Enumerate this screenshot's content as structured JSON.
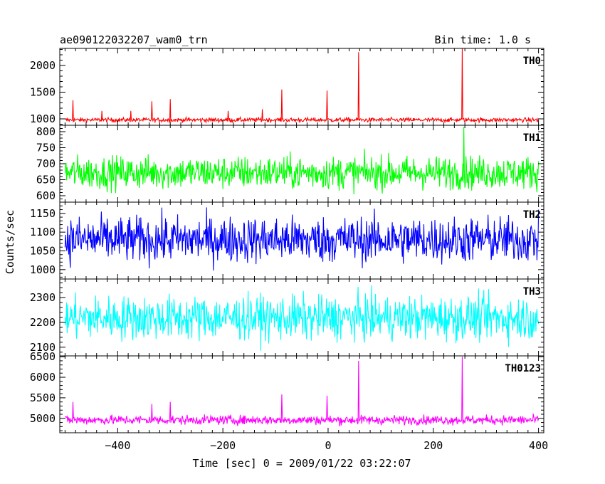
{
  "header": {
    "title": "ae090122032207_wam0_trn",
    "bin_time": "Bin time: 1.0 s"
  },
  "chart_data": {
    "type": "line",
    "xlabel": "Time [sec] 0 = 2009/01/22 03:22:07",
    "ylabel": "Counts/sec",
    "xlim": [
      -510,
      410
    ],
    "data_x_range": [
      -500,
      400
    ],
    "x_ticks": [
      -400,
      -200,
      0,
      200,
      400
    ],
    "x_tick_labels": [
      "−400",
      "−200",
      "0",
      "200",
      "400"
    ],
    "grid": false,
    "series": [
      {
        "name": "TH0",
        "color": "#ff0000",
        "ylim": [
          880,
          2320
        ],
        "y_ticks": [
          1000,
          1500,
          2000
        ],
        "y_tick_labels": [
          "1000",
          "1500",
          "2000"
        ],
        "baseline": 980,
        "noise_amplitude": 25,
        "spikes": [
          {
            "x": -485,
            "y": 1350
          },
          {
            "x": -430,
            "y": 1150
          },
          {
            "x": -375,
            "y": 1150
          },
          {
            "x": -335,
            "y": 1330
          },
          {
            "x": -300,
            "y": 1370
          },
          {
            "x": -190,
            "y": 1150
          },
          {
            "x": -125,
            "y": 1180
          },
          {
            "x": -88,
            "y": 1550
          },
          {
            "x": -2,
            "y": 1530
          },
          {
            "x": 58,
            "y": 2250
          },
          {
            "x": 255,
            "y": 2320
          }
        ]
      },
      {
        "name": "TH1",
        "color": "#00ff00",
        "ylim": [
          580,
          820
        ],
        "y_ticks": [
          600,
          650,
          700,
          750,
          800
        ],
        "y_tick_labels": [
          "600",
          "650",
          "700",
          "750",
          "800"
        ],
        "baseline": 672,
        "noise_amplitude": 32,
        "spikes": [
          {
            "x": 258,
            "y": 815
          }
        ]
      },
      {
        "name": "TH2",
        "color": "#0000ff",
        "ylim": [
          975,
          1180
        ],
        "y_ticks": [
          1000,
          1050,
          1100,
          1150
        ],
        "y_tick_labels": [
          "1000",
          "1050",
          "1100",
          "1150"
        ],
        "baseline": 1080,
        "noise_amplitude": 38,
        "spikes": []
      },
      {
        "name": "TH3",
        "color": "#00ffff",
        "ylim": [
          2065,
          2375
        ],
        "y_ticks": [
          2100,
          2200,
          2300
        ],
        "y_tick_labels": [
          "2100",
          "2200",
          "2300"
        ],
        "baseline": 2218,
        "noise_amplitude": 55,
        "spikes": []
      },
      {
        "name": "TH0123",
        "color": "#ff00ff",
        "ylim": [
          4650,
          6520
        ],
        "y_ticks": [
          5000,
          5500,
          6000,
          6500
        ],
        "y_tick_labels": [
          "5000",
          "5500",
          "6000",
          "6500"
        ],
        "baseline": 4960,
        "noise_amplitude": 70,
        "spikes": [
          {
            "x": -485,
            "y": 5400
          },
          {
            "x": -335,
            "y": 5350
          },
          {
            "x": -300,
            "y": 5400
          },
          {
            "x": -88,
            "y": 5580
          },
          {
            "x": -2,
            "y": 5550
          },
          {
            "x": 58,
            "y": 6400
          },
          {
            "x": 255,
            "y": 6500
          }
        ]
      }
    ]
  }
}
